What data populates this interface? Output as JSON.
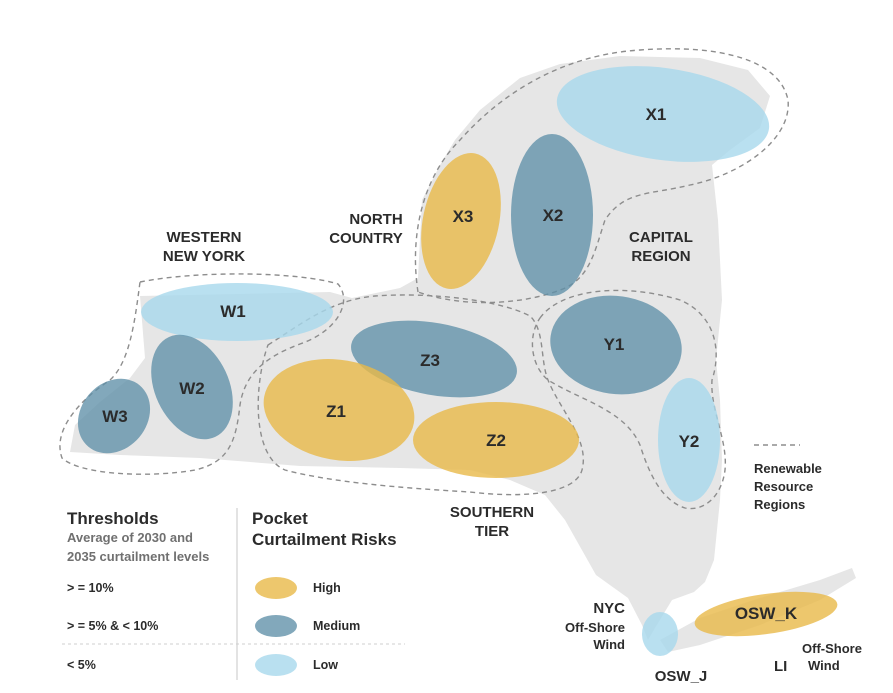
{
  "colors": {
    "high": "#e9b949",
    "medium": "#5f8fa8",
    "low": "#a7d8ec",
    "land": "#e6e6e6"
  },
  "regions": {
    "western_line1": "WESTERN",
    "western_line2": "NEW YORK",
    "north_line1": "NORTH",
    "north_line2": "COUNTRY",
    "capital_line1": "CAPITAL",
    "capital_line2": "REGION",
    "southern_line1": "SOUTHERN",
    "southern_line2": "TIER"
  },
  "pockets": {
    "x1": "X1",
    "x2": "X2",
    "x3": "X3",
    "w1": "W1",
    "w2": "W2",
    "w3": "W3",
    "z1": "Z1",
    "z2": "Z2",
    "z3": "Z3",
    "y1": "Y1",
    "y2": "Y2",
    "osw_k": "OSW_K",
    "osw_j": "OSW_J"
  },
  "offshore": {
    "nyc": "NYC",
    "nyc_line1": "Off-Shore",
    "nyc_line2": "Wind",
    "li": "LI",
    "li_line1": "Off-Shore",
    "li_line2": "Wind"
  },
  "legend": {
    "regions_line1": "Renewable",
    "regions_line2": "Resource",
    "regions_line3": "Regions",
    "thresholds_title": "Thresholds",
    "thresholds_sub1": "Average of 2030 and",
    "thresholds_sub2": "2035 curtailment levels",
    "t_high": "> = 10%",
    "t_medium": "> = 5% & < 10%",
    "t_low": "< 5%",
    "risks_title1": "Pocket",
    "risks_title2": "Curtailment Risks",
    "r_high": "High",
    "r_medium": "Medium",
    "r_low": "Low"
  }
}
